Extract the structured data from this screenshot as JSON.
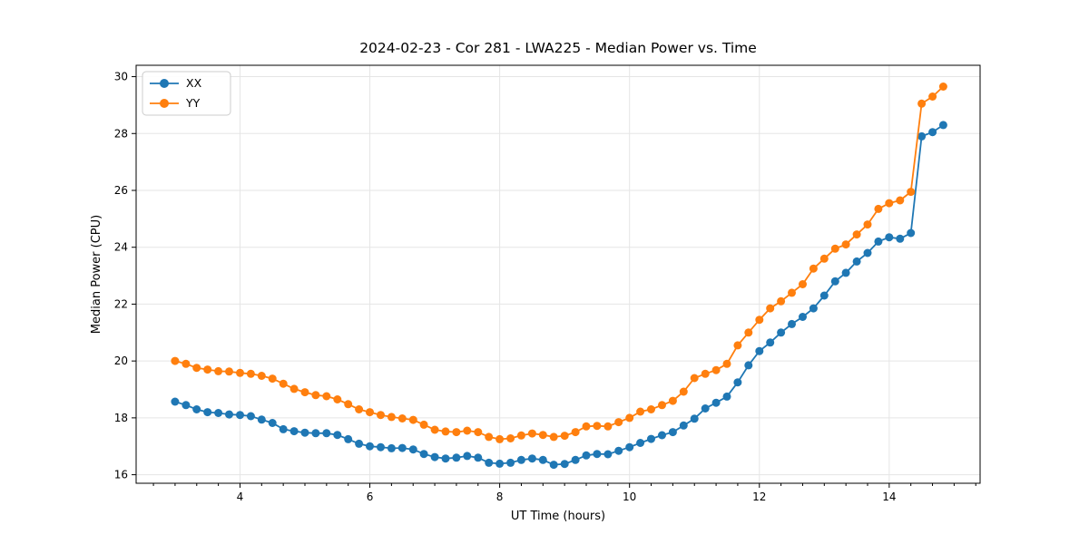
{
  "figure": {
    "background": "#ffffff"
  },
  "chart_data": {
    "type": "line",
    "title": "2024-02-23 - Cor 281 - LWA225 - Median Power vs. Time",
    "xlabel": "UT Time (hours)",
    "ylabel": "Median Power (CPU)",
    "xlim": [
      2.4,
      15.4
    ],
    "ylim": [
      15.7,
      30.4
    ],
    "xticks": [
      4,
      6,
      8,
      10,
      12,
      14
    ],
    "yticks": [
      16,
      18,
      20,
      22,
      24,
      26,
      28,
      30
    ],
    "x_minor_tick_step": 0.3333,
    "grid": true,
    "legend": {
      "position": "upper left",
      "entries": [
        "XX",
        "YY"
      ]
    },
    "x": [
      3.0,
      3.167,
      3.333,
      3.5,
      3.667,
      3.833,
      4.0,
      4.167,
      4.333,
      4.5,
      4.667,
      4.833,
      5.0,
      5.167,
      5.333,
      5.5,
      5.667,
      5.833,
      6.0,
      6.167,
      6.333,
      6.5,
      6.667,
      6.833,
      7.0,
      7.167,
      7.333,
      7.5,
      7.667,
      7.833,
      8.0,
      8.167,
      8.333,
      8.5,
      8.667,
      8.833,
      9.0,
      9.167,
      9.333,
      9.5,
      9.667,
      9.833,
      10.0,
      10.167,
      10.333,
      10.5,
      10.667,
      10.833,
      11.0,
      11.167,
      11.333,
      11.5,
      11.667,
      11.833,
      12.0,
      12.167,
      12.333,
      12.5,
      12.667,
      12.833,
      13.0,
      13.167,
      13.333,
      13.5,
      13.667,
      13.833,
      14.0,
      14.167,
      14.333,
      14.5,
      14.667,
      14.833
    ],
    "series": [
      {
        "name": "XX",
        "color": "#1f77b4",
        "values": [
          18.57,
          18.45,
          18.3,
          18.2,
          18.17,
          18.12,
          18.1,
          18.06,
          17.94,
          17.82,
          17.6,
          17.53,
          17.48,
          17.46,
          17.46,
          17.4,
          17.25,
          17.09,
          17.0,
          16.97,
          16.93,
          16.94,
          16.89,
          16.73,
          16.62,
          16.57,
          16.6,
          16.66,
          16.6,
          16.42,
          16.39,
          16.42,
          16.52,
          16.57,
          16.52,
          16.35,
          16.38,
          16.52,
          16.68,
          16.73,
          16.72,
          16.84,
          16.97,
          17.12,
          17.26,
          17.39,
          17.5,
          17.73,
          17.97,
          18.33,
          18.53,
          18.75,
          19.25,
          19.85,
          20.35,
          20.65,
          21.0,
          21.3,
          21.55,
          21.85,
          22.3,
          22.8,
          23.1,
          23.5,
          23.8,
          24.2,
          24.35,
          24.3,
          24.5,
          27.9,
          28.05,
          28.3
        ]
      },
      {
        "name": "YY",
        "color": "#ff7f0e",
        "values": [
          20.0,
          19.9,
          19.76,
          19.7,
          19.64,
          19.63,
          19.58,
          19.55,
          19.48,
          19.38,
          19.2,
          19.02,
          18.9,
          18.8,
          18.76,
          18.65,
          18.48,
          18.3,
          18.2,
          18.1,
          18.03,
          17.98,
          17.93,
          17.76,
          17.58,
          17.52,
          17.5,
          17.55,
          17.5,
          17.33,
          17.25,
          17.28,
          17.38,
          17.45,
          17.4,
          17.33,
          17.37,
          17.5,
          17.7,
          17.72,
          17.7,
          17.85,
          18.0,
          18.22,
          18.3,
          18.45,
          18.6,
          18.92,
          19.4,
          19.55,
          19.68,
          19.9,
          20.55,
          21.0,
          21.45,
          21.85,
          22.1,
          22.4,
          22.7,
          23.25,
          23.6,
          23.95,
          24.1,
          24.45,
          24.8,
          25.35,
          25.55,
          25.65,
          25.95,
          29.05,
          29.3,
          29.65
        ]
      }
    ]
  }
}
